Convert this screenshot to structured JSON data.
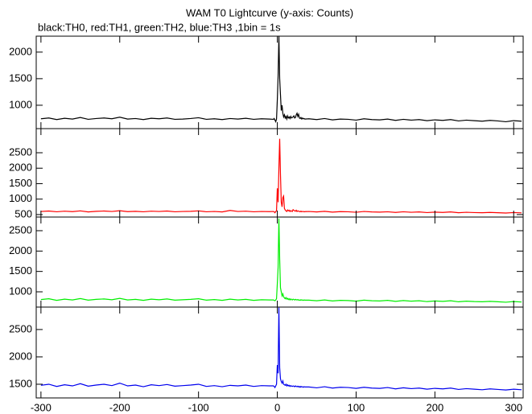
{
  "chart_data": [
    {
      "type": "line",
      "title": "WAM T0 Lightcurve (y-axis: Counts)",
      "subtitle": "black:TH0, red:TH1, green:TH2, blue:TH3 ,1bin = 1s",
      "x": [
        -300,
        -290,
        -280,
        -270,
        -260,
        -250,
        -240,
        -230,
        -220,
        -210,
        -200,
        -190,
        -180,
        -170,
        -160,
        -150,
        -140,
        -130,
        -120,
        -110,
        -100,
        -90,
        -80,
        -70,
        -60,
        -50,
        -40,
        -30,
        -20,
        -10,
        -5,
        -4,
        -3,
        -2,
        -1,
        0,
        1,
        2,
        3,
        4,
        5,
        6,
        7,
        8,
        9,
        10,
        11,
        12,
        13,
        14,
        15,
        16,
        17,
        18,
        19,
        20,
        21,
        22,
        23,
        24,
        25,
        26,
        27,
        28,
        29,
        30,
        31,
        32,
        33,
        34,
        35,
        40,
        50,
        60,
        70,
        80,
        90,
        100,
        110,
        120,
        130,
        140,
        150,
        160,
        170,
        180,
        190,
        200,
        210,
        220,
        230,
        240,
        250,
        260,
        270,
        280,
        290,
        300,
        310
      ],
      "values": [
        745,
        760,
        730,
        755,
        740,
        770,
        735,
        750,
        760,
        745,
        775,
        740,
        750,
        730,
        755,
        745,
        760,
        735,
        740,
        750,
        765,
        735,
        745,
        730,
        750,
        740,
        755,
        735,
        745,
        740,
        735,
        750,
        720,
        690,
        740,
        1100,
        1550,
        2300,
        1500,
        1200,
        900,
        1000,
        850,
        780,
        820,
        760,
        790,
        740,
        800,
        760,
        780,
        750,
        790,
        760,
        770,
        780,
        800,
        760,
        770,
        820,
        850,
        790,
        830,
        760,
        750,
        770,
        740,
        760,
        745,
        750,
        740,
        745,
        730,
        750,
        725,
        740,
        735,
        720,
        745,
        730,
        725,
        740,
        715,
        735,
        720,
        730,
        710,
        725,
        715,
        730,
        705,
        720,
        710,
        700,
        715,
        705,
        690,
        710,
        700
      ],
      "color": "#000000",
      "xlim": [
        -306,
        312
      ],
      "xticks": [
        -300,
        -200,
        -100,
        0,
        100,
        200,
        300
      ],
      "ylim": [
        560,
        2300
      ],
      "yticks": [
        1000,
        1500,
        2000
      ]
    },
    {
      "type": "line",
      "x": [
        -300,
        -290,
        -280,
        -270,
        -260,
        -250,
        -240,
        -230,
        -220,
        -210,
        -200,
        -190,
        -180,
        -170,
        -160,
        -150,
        -140,
        -130,
        -120,
        -110,
        -100,
        -90,
        -80,
        -70,
        -60,
        -50,
        -40,
        -30,
        -20,
        -10,
        -5,
        -4,
        -3,
        -2,
        -1,
        0,
        1,
        2,
        3,
        4,
        5,
        6,
        7,
        8,
        9,
        10,
        11,
        12,
        13,
        14,
        15,
        16,
        17,
        18,
        19,
        20,
        21,
        22,
        23,
        24,
        25,
        26,
        27,
        28,
        29,
        30,
        31,
        32,
        33,
        34,
        35,
        40,
        50,
        60,
        70,
        80,
        90,
        100,
        110,
        120,
        130,
        140,
        150,
        160,
        170,
        180,
        190,
        200,
        210,
        220,
        230,
        240,
        250,
        260,
        270,
        280,
        290,
        300,
        310
      ],
      "values": [
        600,
        615,
        590,
        610,
        595,
        620,
        585,
        605,
        615,
        600,
        625,
        595,
        605,
        590,
        610,
        600,
        615,
        590,
        600,
        605,
        620,
        590,
        600,
        585,
        635,
        600,
        610,
        590,
        600,
        595,
        600,
        590,
        560,
        600,
        620,
        1350,
        900,
        2000,
        2950,
        1800,
        900,
        750,
        1050,
        1100,
        700,
        650,
        620,
        600,
        650,
        620,
        640,
        600,
        630,
        610,
        600,
        660,
        640,
        620,
        610,
        640,
        600,
        620,
        610,
        600,
        590,
        610,
        590,
        600,
        600,
        590,
        595,
        600,
        585,
        605,
        580,
        595,
        590,
        575,
        600,
        585,
        580,
        590,
        570,
        590,
        575,
        585,
        565,
        580,
        570,
        585,
        560,
        575,
        565,
        560,
        570,
        560,
        550,
        565,
        555
      ],
      "color": "#ff0000",
      "xlim": [
        -306,
        312
      ],
      "xticks": [
        -300,
        -200,
        -100,
        0,
        100,
        200,
        300
      ],
      "ylim": [
        420,
        3280
      ],
      "yticks": [
        500,
        1000,
        1500,
        2000,
        2500
      ]
    },
    {
      "type": "line",
      "x": [
        -300,
        -290,
        -280,
        -270,
        -260,
        -250,
        -240,
        -230,
        -220,
        -210,
        -200,
        -190,
        -180,
        -170,
        -160,
        -150,
        -140,
        -130,
        -120,
        -110,
        -100,
        -90,
        -80,
        -70,
        -60,
        -50,
        -40,
        -30,
        -20,
        -10,
        -5,
        -4,
        -3,
        -2,
        -1,
        0,
        1,
        2,
        3,
        4,
        5,
        6,
        7,
        8,
        9,
        10,
        11,
        12,
        13,
        14,
        15,
        16,
        17,
        18,
        19,
        20,
        21,
        22,
        23,
        24,
        25,
        26,
        27,
        28,
        29,
        30,
        31,
        32,
        33,
        34,
        35,
        40,
        50,
        60,
        70,
        80,
        90,
        100,
        110,
        120,
        130,
        140,
        150,
        160,
        170,
        180,
        190,
        200,
        210,
        220,
        230,
        240,
        250,
        260,
        270,
        280,
        290,
        300,
        310
      ],
      "values": [
        810,
        830,
        790,
        820,
        800,
        835,
        795,
        815,
        825,
        805,
        840,
        800,
        815,
        790,
        820,
        805,
        825,
        795,
        805,
        815,
        830,
        795,
        810,
        790,
        820,
        800,
        815,
        790,
        805,
        800,
        800,
        790,
        780,
        800,
        830,
        1200,
        1600,
        2800,
        1800,
        1100,
        1000,
        900,
        950,
        880,
        850,
        830,
        860,
        820,
        840,
        810,
        830,
        800,
        825,
        810,
        800,
        820,
        810,
        800,
        815,
        805,
        800,
        810,
        795,
        800,
        790,
        805,
        795,
        800,
        790,
        800,
        795,
        795,
        780,
        800,
        775,
        790,
        785,
        770,
        795,
        780,
        775,
        790,
        765,
        785,
        770,
        780,
        760,
        775,
        765,
        780,
        755,
        770,
        760,
        755,
        765,
        755,
        745,
        760,
        750
      ],
      "color": "#00ee00",
      "xlim": [
        -306,
        312
      ],
      "xticks": [
        -300,
        -200,
        -100,
        0,
        100,
        200,
        300
      ],
      "ylim": [
        625,
        2835
      ],
      "yticks": [
        1000,
        1500,
        2000,
        2500
      ]
    },
    {
      "type": "line",
      "x": [
        -300,
        -290,
        -280,
        -270,
        -260,
        -250,
        -240,
        -230,
        -220,
        -210,
        -200,
        -190,
        -180,
        -170,
        -160,
        -150,
        -140,
        -130,
        -120,
        -110,
        -100,
        -90,
        -80,
        -70,
        -60,
        -50,
        -40,
        -30,
        -20,
        -10,
        -5,
        -4,
        -3,
        -2,
        -1,
        0,
        1,
        2,
        3,
        4,
        5,
        6,
        7,
        8,
        9,
        10,
        11,
        12,
        13,
        14,
        15,
        16,
        17,
        18,
        19,
        20,
        21,
        22,
        23,
        24,
        25,
        26,
        27,
        28,
        29,
        30,
        31,
        32,
        33,
        34,
        35,
        40,
        50,
        60,
        70,
        80,
        90,
        100,
        110,
        120,
        130,
        140,
        150,
        160,
        170,
        180,
        190,
        200,
        210,
        220,
        230,
        240,
        250,
        260,
        270,
        280,
        290,
        300,
        310
      ],
      "values": [
        1480,
        1500,
        1460,
        1490,
        1470,
        1510,
        1465,
        1485,
        1500,
        1475,
        1520,
        1470,
        1485,
        1455,
        1490,
        1475,
        1495,
        1465,
        1475,
        1485,
        1500,
        1460,
        1475,
        1455,
        1480,
        1470,
        1485,
        1460,
        1475,
        1470,
        1470,
        1460,
        1440,
        1470,
        1500,
        1850,
        1700,
        2900,
        1800,
        1600,
        1550,
        1520,
        1560,
        1500,
        1490,
        1480,
        1500,
        1470,
        1490,
        1470,
        1480,
        1460,
        1475,
        1465,
        1460,
        1470,
        1465,
        1455,
        1470,
        1460,
        1455,
        1465,
        1450,
        1460,
        1445,
        1460,
        1450,
        1455,
        1445,
        1455,
        1450,
        1450,
        1435,
        1455,
        1430,
        1445,
        1440,
        1425,
        1445,
        1430,
        1425,
        1440,
        1415,
        1435,
        1420,
        1430,
        1410,
        1425,
        1415,
        1430,
        1405,
        1420,
        1410,
        1400,
        1415,
        1405,
        1395,
        1410,
        1400
      ],
      "color": "#0000ee",
      "xlim": [
        -306,
        312
      ],
      "xticks": [
        -300,
        -200,
        -100,
        0,
        100,
        200,
        300
      ],
      "ylim": [
        1250,
        2910
      ],
      "yticks": [
        1500,
        2000,
        2500
      ]
    }
  ]
}
